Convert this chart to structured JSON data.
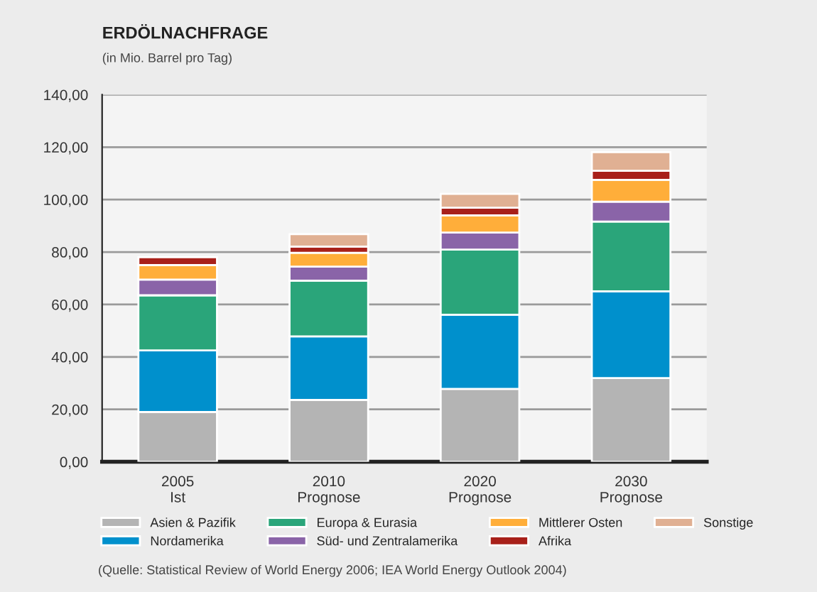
{
  "chart_data": {
    "type": "bar",
    "title": "ERDÖLNACHFRAGE",
    "subtitle": "(in Mio. Barrel pro Tag)",
    "categories": [
      "2005\nIst",
      "2010\nPrognose",
      "2020\nPrognose",
      "2030\nPrognose"
    ],
    "stacked": true,
    "series": [
      {
        "name": "Asien & Pazifik",
        "color": "#b4b4b4",
        "values": [
          19.0,
          23.6,
          27.8,
          31.9
        ]
      },
      {
        "name": "Nordamerika",
        "color": "#0090cc",
        "values": [
          23.5,
          24.2,
          28.3,
          33.1
        ]
      },
      {
        "name": "Europa & Eurasia",
        "color": "#2aa57a",
        "values": [
          21.0,
          21.3,
          24.8,
          26.6
        ]
      },
      {
        "name": "Süd- und Zentralamerika",
        "color": "#8a64a8",
        "values": [
          6.0,
          5.3,
          6.5,
          7.6
        ]
      },
      {
        "name": "Mittlerer Osten",
        "color": "#ffae3a",
        "values": [
          5.5,
          5.3,
          6.6,
          8.3
        ]
      },
      {
        "name": "Afrika",
        "color": "#a8201a",
        "values": [
          3.0,
          2.4,
          2.9,
          3.5
        ]
      },
      {
        "name": "Sonstige",
        "color": "#e0b093",
        "values": [
          null,
          4.7,
          5.3,
          7.1
        ]
      }
    ],
    "ylim": [
      0,
      140
    ],
    "yticks": [
      {
        "value": 0,
        "label": "0,00"
      },
      {
        "value": 20,
        "label": "20,00"
      },
      {
        "value": 40,
        "label": "40,00"
      },
      {
        "value": 60,
        "label": "60,00"
      },
      {
        "value": 80,
        "label": "80,00"
      },
      {
        "value": 100,
        "label": "100,00"
      },
      {
        "value": 120,
        "label": "120,00"
      },
      {
        "value": 140,
        "label": "140,00"
      }
    ],
    "grid": "y",
    "legend": "bottom",
    "annotations": [
      "(Quelle: Statistical Review of World Energy 2006; IEA World Energy Outlook 2004)"
    ]
  }
}
